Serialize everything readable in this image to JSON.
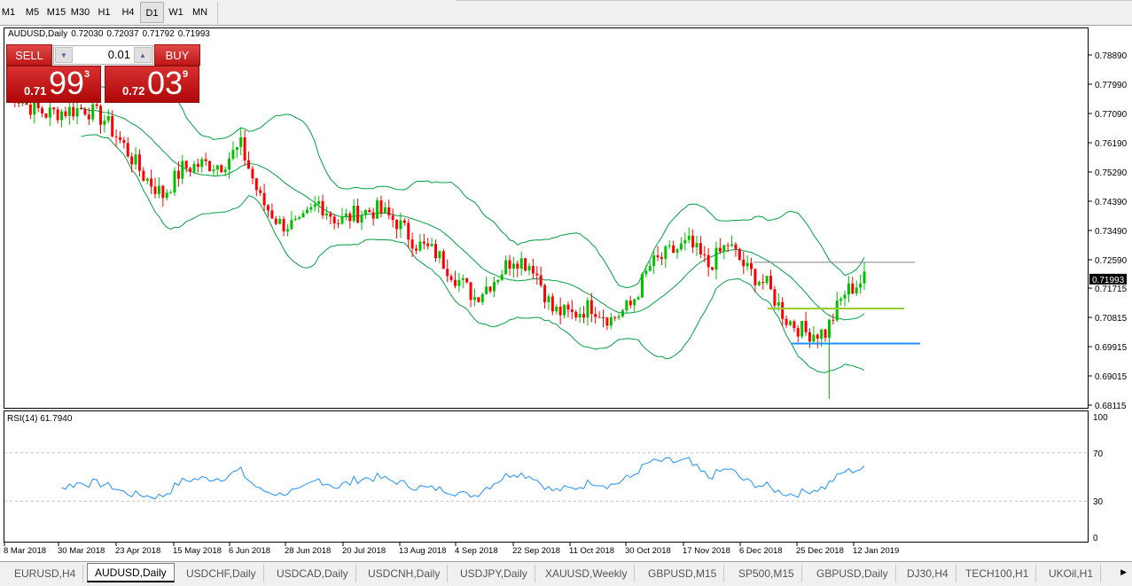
{
  "toolbar": {
    "timeframes": [
      "M1",
      "M5",
      "M15",
      "M30",
      "H1",
      "H4",
      "D1",
      "W1",
      "MN"
    ],
    "active": "D1"
  },
  "chart": {
    "symbol": "AUDUSD,Daily",
    "ohlc": [
      "0.72030",
      "0.72037",
      "0.71792",
      "0.71993"
    ],
    "current_price": "0.71993"
  },
  "trade_panel": {
    "sell_label": "SELL",
    "buy_label": "BUY",
    "lot": "0.01",
    "sell": {
      "pre": "0.71",
      "big": "99",
      "sup": "3"
    },
    "buy": {
      "pre": "0.72",
      "big": "03",
      "sup": "9"
    }
  },
  "price_axis": [
    "0.78890",
    "0.77990",
    "0.77090",
    "0.76190",
    "0.75290",
    "0.74390",
    "0.73490",
    "0.72590",
    "0.71715",
    "0.70815",
    "0.69915",
    "0.69015",
    "0.68115"
  ],
  "rsi": {
    "label": "RSI(14) 61.7940",
    "levels": [
      "100",
      "70",
      "30",
      "0"
    ]
  },
  "date_axis": [
    "8 Mar 2018",
    "30 Mar 2018",
    "23 Apr 2018",
    "15 May 2018",
    "6 Jun 2018",
    "28 Jun 2018",
    "20 Jul 2018",
    "13 Aug 2018",
    "4 Sep 2018",
    "22 Sep 2018",
    "11 Oct 2018",
    "30 Oct 2018",
    "17 Nov 2018",
    "6 Dec 2018",
    "25 Dec 2018",
    "12 Jan 2019"
  ],
  "tabs": [
    "EURUSD,H4",
    "AUDUSD,Daily",
    "USDCHF,Daily",
    "USDCAD,Daily",
    "USDCNH,Daily",
    "USDJPY,Daily",
    "XAUUSD,Weekly",
    "GBPUSD,M15",
    "SP500,M15",
    "GBPUSD,Daily",
    "DJ30,H4",
    "TECH100,H1",
    "UKOil,H1"
  ],
  "active_tab": "AUDUSD,Daily",
  "colors": {
    "bull": "#00c000",
    "bear": "#ff0000",
    "bands": "#00a040",
    "rsi": "#1e90ff",
    "level_gray": "#808080",
    "level_yellow": "#9acd32",
    "level_blue": "#1e90ff",
    "trade": "#c81c1c"
  },
  "chart_data": {
    "type": "candlestick",
    "indicators": [
      "Bollinger Bands",
      "RSI(14)"
    ],
    "ylim": [
      0.68115,
      0.7889
    ],
    "close_samples_5d": [
      0.7785,
      0.7736,
      0.7709,
      0.7717,
      0.7725,
      0.769,
      0.7608,
      0.7518,
      0.7458,
      0.754,
      0.7553,
      0.7553,
      0.7608,
      0.7444,
      0.737,
      0.7362,
      0.7436,
      0.7376,
      0.7403,
      0.7412,
      0.7376,
      0.7308,
      0.728,
      0.7207,
      0.7144,
      0.7199,
      0.7267,
      0.724,
      0.7103,
      0.709,
      0.7117,
      0.7076,
      0.7117,
      0.724,
      0.728,
      0.7308,
      0.724,
      0.7308,
      0.7226,
      0.718,
      0.7076,
      0.7035,
      0.7035,
      0.7158,
      0.7199
    ],
    "low_extreme": 0.6831,
    "hlines": [
      {
        "price": 0.7251,
        "color": "#808080"
      },
      {
        "price": 0.7109,
        "color": "#9acd32"
      },
      {
        "price": 0.7001,
        "color": "#1e90ff"
      }
    ],
    "rsi_levels": [
      70,
      30
    ]
  }
}
